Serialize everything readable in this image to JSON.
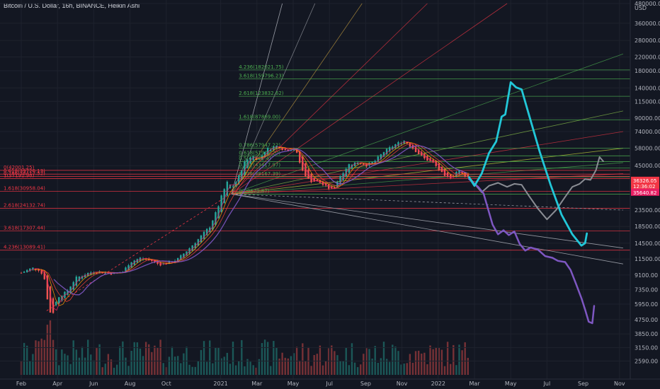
{
  "header": {
    "title": "Bitcoin / U.S. Dollar, 16h, BINANCE, Heikin Ashi"
  },
  "colors": {
    "background": "#131722",
    "up": "#26a69a",
    "down": "#ef5350",
    "fib_green": "#4caf50",
    "fib_red": "#f23645",
    "cyan": "#22c7d8",
    "gray": "#8a8d94",
    "purple": "#7e57c2"
  },
  "chart_data": {
    "type": "line",
    "title": "",
    "yscale": "log",
    "ylim": [
      2300,
      480000
    ],
    "yaxis_unit": "USD",
    "x_ticks": [
      {
        "label": "Feb",
        "t": 0
      },
      {
        "label": "Apr",
        "t": 2
      },
      {
        "label": "Jun",
        "t": 4
      },
      {
        "label": "Aug",
        "t": 6
      },
      {
        "label": "Oct",
        "t": 8
      },
      {
        "label": "2021",
        "t": 11
      },
      {
        "label": "Mar",
        "t": 13
      },
      {
        "label": "May",
        "t": 15
      },
      {
        "label": "Jul",
        "t": 17
      },
      {
        "label": "Sep",
        "t": 19
      },
      {
        "label": "Nov",
        "t": 21
      },
      {
        "label": "2022",
        "t": 23
      },
      {
        "label": "Mar",
        "t": 25
      },
      {
        "label": "May",
        "t": 27
      },
      {
        "label": "Jul",
        "t": 29
      },
      {
        "label": "Sep",
        "t": 31
      },
      {
        "label": "Nov",
        "t": 33
      }
    ],
    "xlim": [
      0,
      34.1
    ],
    "y_ticks": [
      {
        "label": "480000.00",
        "v": 480000
      },
      {
        "label": "360000.00",
        "v": 360000
      },
      {
        "label": "280000.00",
        "v": 280000
      },
      {
        "label": "220000.00",
        "v": 220000
      },
      {
        "label": "180000.00",
        "v": 180000
      },
      {
        "label": "140000.00",
        "v": 140000
      },
      {
        "label": "115000.00",
        "v": 115000
      },
      {
        "label": "90000.00",
        "v": 90000
      },
      {
        "label": "74000.00",
        "v": 74000
      },
      {
        "label": "58000.00",
        "v": 58000
      },
      {
        "label": "45000.00",
        "v": 45000
      },
      {
        "label": "23500.00",
        "v": 23500
      },
      {
        "label": "18500.00",
        "v": 18500
      },
      {
        "label": "14500.00",
        "v": 14500
      },
      {
        "label": "11500.00",
        "v": 11500
      },
      {
        "label": "9100.00",
        "v": 9100
      },
      {
        "label": "7350.00",
        "v": 7350
      },
      {
        "label": "5950.00",
        "v": 5950
      },
      {
        "label": "4750.00",
        "v": 4750
      },
      {
        "label": "3850.00",
        "v": 3850
      },
      {
        "label": "3150.00",
        "v": 3150
      },
      {
        "label": "2590.00",
        "v": 2590
      }
    ],
    "price_labels": [
      {
        "label": "36326.05",
        "v": 36326,
        "color": "#f23645"
      },
      {
        "label": "12:36:02",
        "v": 33400,
        "color": "#f23645"
      },
      {
        "label": "35640.82",
        "v": 30500,
        "color": "#e91e63"
      }
    ],
    "fib_upper": [
      {
        "label": "4.236(182021.75)",
        "v": 182021.75
      },
      {
        "label": "3.618(159796.23)",
        "v": 159796.23
      },
      {
        "label": "2.618(123832.62)",
        "v": 123832.62
      },
      {
        "label": "1.618(87869.00)",
        "v": 87869.0
      },
      {
        "label": "0.786(57947.22)",
        "v": 57947.22
      },
      {
        "label": "0.618(51905.20)",
        "v": 51905.2
      },
      {
        "label": "0.5(47661.4)",
        "v": 47661.4
      },
      {
        "label": "0.382(43417.97)",
        "v": 43417.97
      },
      {
        "label": "0.236(38167.39)",
        "v": 38167.39
      },
      {
        "label": "0(29679.87)",
        "v": 29679.87
      }
    ],
    "fib_lower": [
      {
        "label": "0(42001.25)",
        "v": 42001.25
      },
      {
        "label": "0.618(39726.13)",
        "v": 39726.13
      },
      {
        "label": "0.786(38417.52)",
        "v": 38417.52
      },
      {
        "label": "1(37191.90)",
        "v": 37191.9
      },
      {
        "label": "1.618(30958.04)",
        "v": 30958.04
      },
      {
        "label": "2.618(24132.74)",
        "v": 24132.74
      },
      {
        "label": "3.618(17307.44)",
        "v": 17307.44
      },
      {
        "label": "4.236(13089.41)",
        "v": 13089.41
      }
    ],
    "price_series": [
      {
        "t": 0,
        "v": 9400
      },
      {
        "t": 0.6,
        "v": 10100
      },
      {
        "t": 1.0,
        "v": 9800
      },
      {
        "t": 1.3,
        "v": 8600
      },
      {
        "t": 1.5,
        "v": 5600
      },
      {
        "t": 1.7,
        "v": 5000
      },
      {
        "t": 2.0,
        "v": 6600
      },
      {
        "t": 2.5,
        "v": 7100
      },
      {
        "t": 3.0,
        "v": 8700
      },
      {
        "t": 3.5,
        "v": 9200
      },
      {
        "t": 4.0,
        "v": 9600
      },
      {
        "t": 5.0,
        "v": 9300
      },
      {
        "t": 5.6,
        "v": 9500
      },
      {
        "t": 6.0,
        "v": 11000
      },
      {
        "t": 6.6,
        "v": 11700
      },
      {
        "t": 7.2,
        "v": 11200
      },
      {
        "t": 7.6,
        "v": 10600
      },
      {
        "t": 8.0,
        "v": 10800
      },
      {
        "t": 8.6,
        "v": 11400
      },
      {
        "t": 9.2,
        "v": 13200
      },
      {
        "t": 9.8,
        "v": 15500
      },
      {
        "t": 10.4,
        "v": 18500
      },
      {
        "t": 10.8,
        "v": 23500
      },
      {
        "t": 11.1,
        "v": 30000
      },
      {
        "t": 11.4,
        "v": 36000
      },
      {
        "t": 11.6,
        "v": 32500
      },
      {
        "t": 11.9,
        "v": 36000
      },
      {
        "t": 12.3,
        "v": 47000
      },
      {
        "t": 12.7,
        "v": 52000
      },
      {
        "t": 13.1,
        "v": 49000
      },
      {
        "t": 13.5,
        "v": 57000
      },
      {
        "t": 14.1,
        "v": 60000
      },
      {
        "t": 14.6,
        "v": 56000
      },
      {
        "t": 15.1,
        "v": 58000
      },
      {
        "t": 15.5,
        "v": 42000
      },
      {
        "t": 15.9,
        "v": 36000
      },
      {
        "t": 16.4,
        "v": 35500
      },
      {
        "t": 16.8,
        "v": 33000
      },
      {
        "t": 17.2,
        "v": 31500
      },
      {
        "t": 17.6,
        "v": 39000
      },
      {
        "t": 18.1,
        "v": 46000
      },
      {
        "t": 18.6,
        "v": 47500
      },
      {
        "t": 19.0,
        "v": 45000
      },
      {
        "t": 19.5,
        "v": 48000
      },
      {
        "t": 20.0,
        "v": 55000
      },
      {
        "t": 20.6,
        "v": 61000
      },
      {
        "t": 21.1,
        "v": 65000
      },
      {
        "t": 21.6,
        "v": 58000
      },
      {
        "t": 22.2,
        "v": 50000
      },
      {
        "t": 22.7,
        "v": 47000
      },
      {
        "t": 23.0,
        "v": 43000
      },
      {
        "t": 23.4,
        "v": 37500
      },
      {
        "t": 23.8,
        "v": 38500
      },
      {
        "t": 24.1,
        "v": 42500
      },
      {
        "t": 24.4,
        "v": 39000
      },
      {
        "t": 24.7,
        "v": 38000
      }
    ],
    "projection_cyan": [
      {
        "t": 24.7,
        "v": 38000
      },
      {
        "t": 25.0,
        "v": 33500
      },
      {
        "t": 25.4,
        "v": 40000
      },
      {
        "t": 25.8,
        "v": 54000
      },
      {
        "t": 26.2,
        "v": 64000
      },
      {
        "t": 26.5,
        "v": 92000
      },
      {
        "t": 26.7,
        "v": 95000
      },
      {
        "t": 27.0,
        "v": 152000
      },
      {
        "t": 27.3,
        "v": 141000
      },
      {
        "t": 27.6,
        "v": 137000
      },
      {
        "t": 28.0,
        "v": 95000
      },
      {
        "t": 28.6,
        "v": 55000
      },
      {
        "t": 29.2,
        "v": 34000
      },
      {
        "t": 29.8,
        "v": 22000
      },
      {
        "t": 30.4,
        "v": 16500
      },
      {
        "t": 30.9,
        "v": 14000
      },
      {
        "t": 31.1,
        "v": 14500
      },
      {
        "t": 31.2,
        "v": 16700
      }
    ],
    "projection_gray": [
      {
        "t": 24.7,
        "v": 38000
      },
      {
        "t": 25.4,
        "v": 30500
      },
      {
        "t": 25.8,
        "v": 33500
      },
      {
        "t": 26.3,
        "v": 35000
      },
      {
        "t": 26.8,
        "v": 33000
      },
      {
        "t": 27.2,
        "v": 34500
      },
      {
        "t": 27.6,
        "v": 34000
      },
      {
        "t": 28.0,
        "v": 29000
      },
      {
        "t": 28.5,
        "v": 24000
      },
      {
        "t": 29.0,
        "v": 20500
      },
      {
        "t": 29.5,
        "v": 23500
      },
      {
        "t": 30.0,
        "v": 28500
      },
      {
        "t": 30.4,
        "v": 33000
      },
      {
        "t": 30.8,
        "v": 34500
      },
      {
        "t": 31.1,
        "v": 37000
      },
      {
        "t": 31.4,
        "v": 36500
      },
      {
        "t": 31.7,
        "v": 42000
      },
      {
        "t": 31.9,
        "v": 51000
      },
      {
        "t": 32.1,
        "v": 48000
      }
    ],
    "projection_purple": [
      {
        "t": 24.7,
        "v": 37000
      },
      {
        "t": 25.2,
        "v": 33000
      },
      {
        "t": 25.5,
        "v": 30000
      },
      {
        "t": 25.7,
        "v": 25000
      },
      {
        "t": 26.0,
        "v": 19000
      },
      {
        "t": 26.3,
        "v": 16500
      },
      {
        "t": 26.6,
        "v": 17500
      },
      {
        "t": 26.9,
        "v": 16300
      },
      {
        "t": 27.2,
        "v": 17200
      },
      {
        "t": 27.5,
        "v": 14300
      },
      {
        "t": 27.8,
        "v": 13000
      },
      {
        "t": 28.1,
        "v": 13600
      },
      {
        "t": 28.5,
        "v": 13200
      },
      {
        "t": 28.9,
        "v": 12000
      },
      {
        "t": 29.3,
        "v": 11700
      },
      {
        "t": 29.6,
        "v": 11200
      },
      {
        "t": 30.0,
        "v": 11000
      },
      {
        "t": 30.3,
        "v": 9800
      },
      {
        "t": 30.6,
        "v": 8000
      },
      {
        "t": 30.9,
        "v": 6500
      },
      {
        "t": 31.1,
        "v": 5500
      },
      {
        "t": 31.3,
        "v": 4600
      },
      {
        "t": 31.5,
        "v": 4500
      },
      {
        "t": 31.6,
        "v": 5800
      }
    ],
    "gray_lines": [
      {
        "t1": 11.6,
        "v1": 29679,
        "t2": 33.2,
        "v2": 13500
      },
      {
        "t1": 11.6,
        "v1": 29679,
        "t2": 33.2,
        "v2": 10700
      },
      {
        "t1": 11.6,
        "v1": 29679,
        "t2": 33.2,
        "v2": 23500
      }
    ],
    "fan_origin": {
      "t": 11.6,
      "v": 29679.87
    },
    "fan_targets": [
      {
        "t": 14.4,
        "v": 480000,
        "color": "#d1d4dc"
      },
      {
        "t": 16.2,
        "v": 480000,
        "color": "#a0a3aa"
      },
      {
        "t": 18.8,
        "v": 480000,
        "color": "#c8a040"
      },
      {
        "t": 22.4,
        "v": 480000,
        "color": "#f23645"
      },
      {
        "t": 26.8,
        "v": 480000,
        "color": "#f23645"
      },
      {
        "t": 33.2,
        "v": 230000,
        "color": "#4caf50"
      },
      {
        "t": 33.2,
        "v": 100000,
        "color": "#8bc34a"
      },
      {
        "t": 33.2,
        "v": 74000,
        "color": "#f23645"
      },
      {
        "t": 33.2,
        "v": 58000,
        "color": "#cddc39"
      },
      {
        "t": 33.2,
        "v": 47000,
        "color": "#4caf50"
      },
      {
        "t": 33.2,
        "v": 40000,
        "color": "#f23645"
      }
    ]
  }
}
